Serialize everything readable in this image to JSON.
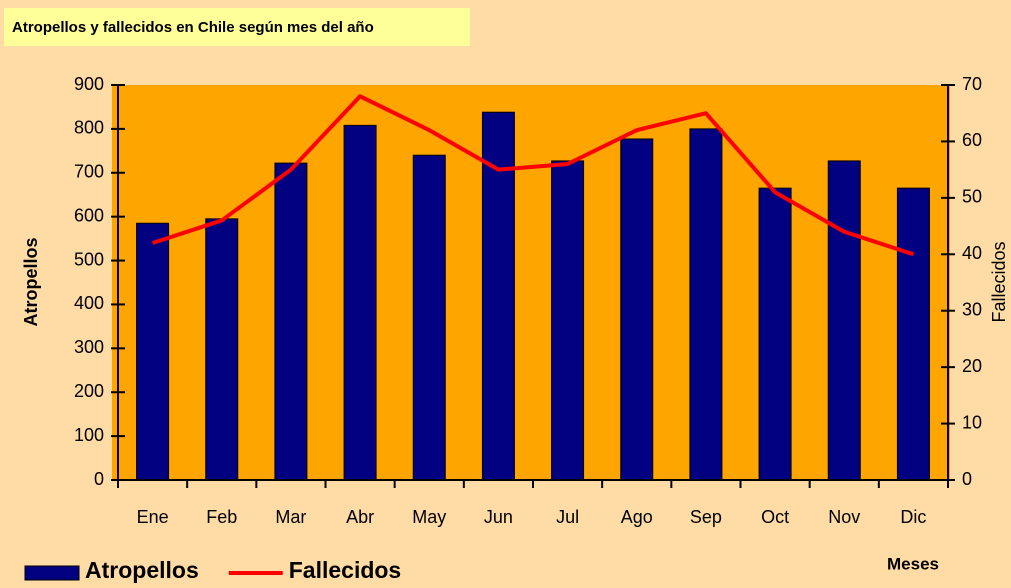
{
  "chart_data": {
    "type": "bar-line",
    "title": "Atropellos y fallecidos en Chile según mes del año",
    "xlabel": "Meses",
    "ylabel": "Atropellos",
    "y2label": "Fallecidos",
    "categories": [
      "Ene",
      "Feb",
      "Mar",
      "Abr",
      "May",
      "Jun",
      "Jul",
      "Ago",
      "Sep",
      "Oct",
      "Nov",
      "Dic"
    ],
    "series": [
      {
        "name": "Atropellos",
        "type": "bar",
        "color": "#000080",
        "values": [
          585,
          595,
          722,
          808,
          740,
          838,
          727,
          777,
          800,
          665,
          727,
          665
        ]
      },
      {
        "name": "Fallecidos",
        "type": "line",
        "axis": "y2",
        "color": "#ff0000",
        "values": [
          42,
          46,
          55,
          68,
          62,
          55,
          56,
          62,
          65,
          51,
          44,
          40
        ]
      }
    ],
    "ylim": [
      0,
      900
    ],
    "yticks": [
      0,
      100,
      200,
      300,
      400,
      500,
      600,
      700,
      800,
      900
    ],
    "y2lim": [
      0,
      70
    ],
    "y2ticks": [
      0,
      10,
      20,
      30,
      40,
      50,
      60,
      70
    ],
    "legend": "bottom-left"
  }
}
